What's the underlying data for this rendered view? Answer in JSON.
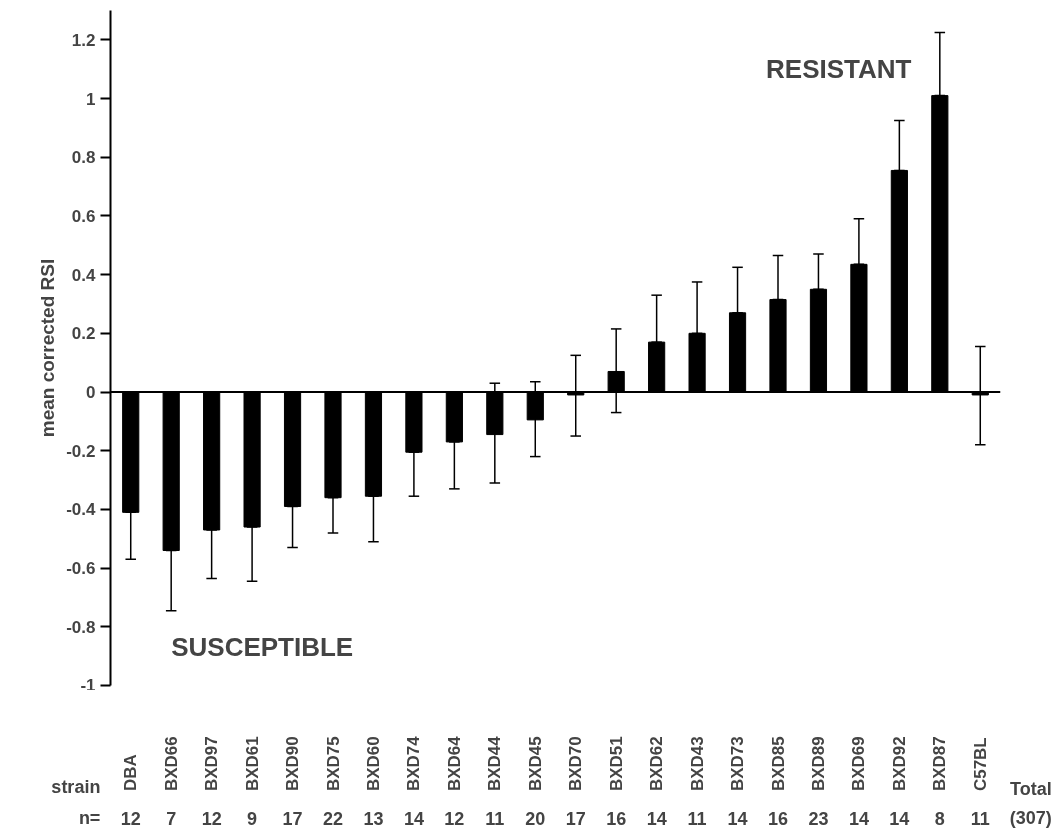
{
  "chart_data": {
    "type": "bar",
    "ylabel": "mean corrected RSI",
    "xlabel": "strain",
    "categories": [
      "DBA",
      "BXD66",
      "BXD97",
      "BXD61",
      "BXD90",
      "BXD75",
      "BXD60",
      "BXD74",
      "BXD64",
      "BXD44",
      "BXD45",
      "BXD70",
      "BXD51",
      "BXD62",
      "BXD43",
      "BXD73",
      "BXD85",
      "BXD89",
      "BXD69",
      "BXD92",
      "BXD87",
      "C57BL"
    ],
    "values": [
      -0.41,
      -0.54,
      -0.47,
      -0.46,
      -0.39,
      -0.36,
      -0.355,
      -0.205,
      -0.17,
      -0.145,
      -0.095,
      -0.01,
      0.07,
      0.17,
      0.2,
      0.27,
      0.315,
      0.35,
      0.435,
      0.755,
      1.01,
      -0.01
    ],
    "errors": [
      [
        -0.57,
        -0.41
      ],
      [
        -0.745,
        -0.54
      ],
      [
        -0.635,
        -0.47
      ],
      [
        -0.645,
        -0.46
      ],
      [
        -0.53,
        -0.39
      ],
      [
        -0.48,
        -0.36
      ],
      [
        -0.51,
        -0.355
      ],
      [
        -0.355,
        -0.205
      ],
      [
        -0.33,
        -0.17
      ],
      [
        -0.31,
        0.03
      ],
      [
        -0.22,
        0.035
      ],
      [
        -0.15,
        0.125
      ],
      [
        -0.07,
        0.215
      ],
      [
        0.17,
        0.33
      ],
      [
        0.2,
        0.375
      ],
      [
        0.27,
        0.425
      ],
      [
        0.315,
        0.465
      ],
      [
        0.35,
        0.47
      ],
      [
        0.435,
        0.59
      ],
      [
        0.755,
        0.925
      ],
      [
        1.01,
        1.225
      ],
      [
        -0.18,
        0.155
      ]
    ],
    "color": "#000000",
    "ylim": [
      -1,
      1.3
    ],
    "yticks": [
      -1,
      -0.8,
      -0.6,
      -0.4,
      -0.2,
      0,
      0.2,
      0.4,
      0.6,
      0.8,
      1,
      1.2
    ],
    "grid": false,
    "ref_lines": [
      {
        "axis": "y",
        "value": 0,
        "color": "#000000",
        "line_style": "solid"
      }
    ],
    "annotations": [
      "n=",
      "Total",
      "(307)",
      "RESISTANT",
      "SUSCEPTIBLE",
      "12",
      "7",
      "12",
      "9",
      "17",
      "22",
      "13",
      "14",
      "12",
      "11",
      "20",
      "17",
      "16",
      "14",
      "11",
      "14",
      "16",
      "23",
      "14",
      "14",
      "8",
      "11"
    ]
  }
}
